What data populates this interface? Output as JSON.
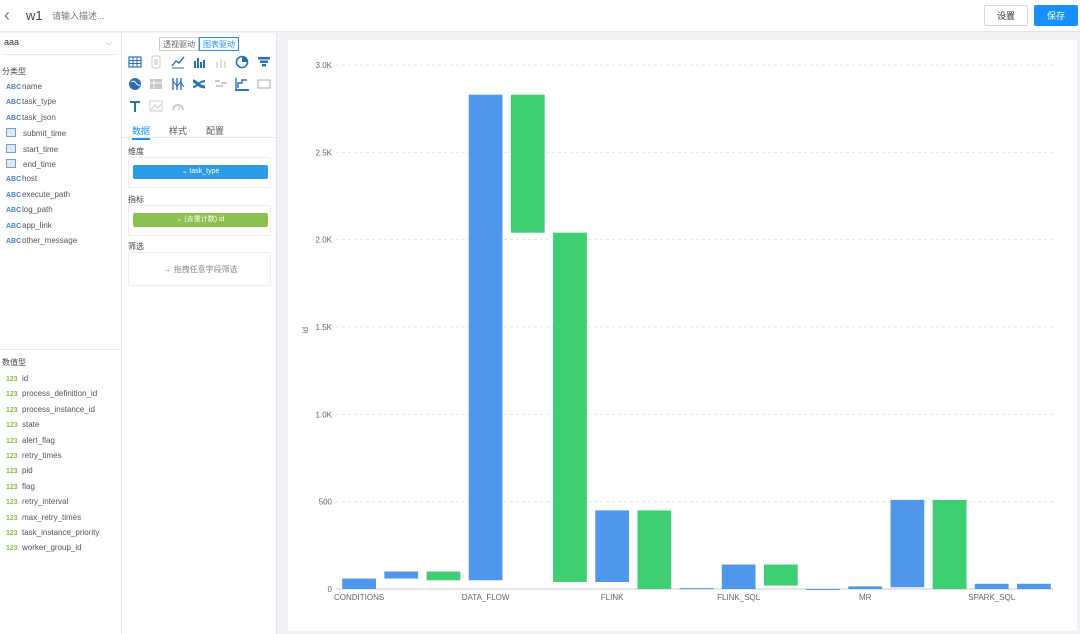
{
  "header": {
    "back_icon": "chevron-left-icon",
    "title": "w1",
    "desc_placeholder": "请输入描述...",
    "settings_label": "设置",
    "save_label": "保存"
  },
  "datasource": {
    "value": "aaa"
  },
  "dimensions": {
    "title": "分类型",
    "fields": [
      {
        "type": "ABC",
        "name": "name"
      },
      {
        "type": "ABC",
        "name": "task_type"
      },
      {
        "type": "ABC",
        "name": "task_json"
      },
      {
        "type": "calendar",
        "name": "submit_time"
      },
      {
        "type": "calendar",
        "name": "start_time"
      },
      {
        "type": "calendar",
        "name": "end_time"
      },
      {
        "type": "ABC",
        "name": "host"
      },
      {
        "type": "ABC",
        "name": "execute_path"
      },
      {
        "type": "ABC",
        "name": "log_path"
      },
      {
        "type": "ABC",
        "name": "app_link"
      },
      {
        "type": "ABC",
        "name": "other_message"
      }
    ]
  },
  "measures": {
    "title": "数值型",
    "fields": [
      {
        "type": "123",
        "name": "id"
      },
      {
        "type": "123",
        "name": "process_definition_id"
      },
      {
        "type": "123",
        "name": "process_instance_id"
      },
      {
        "type": "123",
        "name": "state"
      },
      {
        "type": "123",
        "name": "alert_flag"
      },
      {
        "type": "123",
        "name": "retry_times"
      },
      {
        "type": "123",
        "name": "pid"
      },
      {
        "type": "123",
        "name": "flag"
      },
      {
        "type": "123",
        "name": "retry_interval"
      },
      {
        "type": "123",
        "name": "max_retry_times"
      },
      {
        "type": "123",
        "name": "task_instance_priority"
      },
      {
        "type": "123",
        "name": "worker_group_id"
      }
    ]
  },
  "config": {
    "modes": [
      "透视驱动",
      "图表驱动"
    ],
    "active_mode": 1,
    "tabs": [
      "数据",
      "样式",
      "配置"
    ],
    "active_tab": 0,
    "dimension_label": "维度",
    "dimension_pill": "⌄ task_type",
    "metric_label": "指标",
    "metric_pill": "⌄ (去重计数) id",
    "filter_label": "筛选",
    "filter_hint": "→ 拖拽任意字段筛选",
    "chart_icons": [
      "table-icon",
      "scorecard-icon",
      "line-chart-icon",
      "bar-chart-icon",
      "scatter-icon",
      "pie-chart-icon",
      "funnel-icon",
      "map-icon",
      "heatmap-icon",
      "parallel-icon",
      "sankey-icon",
      "wordcloud-icon",
      "waterfall-icon",
      "rect-icon",
      "text-icon",
      "image-icon",
      "gauge-icon"
    ]
  },
  "chart_data": {
    "type": "bar",
    "subtype": "waterfall",
    "categories": [
      "CONDITIONS",
      "",
      "DATA_FLOW",
      "",
      "FLINK",
      "",
      "FLINK_SQL",
      "",
      "MR",
      "",
      "SPARK_SQL",
      ""
    ],
    "bars": [
      {
        "category": "CONDITIONS",
        "series": "blue",
        "start": 0,
        "end": 60
      },
      {
        "category": "",
        "series": "blue",
        "start": 60,
        "end": 100
      },
      {
        "category": "",
        "series": "green",
        "start": 50,
        "end": 100
      },
      {
        "category": "DATA_FLOW",
        "series": "blue",
        "start": 50,
        "end": 2830
      },
      {
        "category": "",
        "series": "green",
        "start": 2040,
        "end": 2830
      },
      {
        "category": "",
        "series": "green",
        "start": 40,
        "end": 2040
      },
      {
        "category": "FLINK",
        "series": "blue",
        "start": 40,
        "end": 450
      },
      {
        "category": "",
        "series": "green",
        "start": 0,
        "end": 450
      },
      {
        "category": "",
        "series": "blue",
        "start": 0,
        "end": 5
      },
      {
        "category": "FLINK_SQL",
        "series": "blue",
        "start": 0,
        "end": 140
      },
      {
        "category": "",
        "series": "green",
        "start": 20,
        "end": 140
      },
      {
        "category": "",
        "series": "blue",
        "start": 0,
        "end": 0
      },
      {
        "category": "MR",
        "series": "blue",
        "start": 0,
        "end": 15
      },
      {
        "category": "",
        "series": "blue",
        "start": 10,
        "end": 510
      },
      {
        "category": "",
        "series": "green",
        "start": 0,
        "end": 510
      },
      {
        "category": "SPARK_SQL",
        "series": "blue",
        "start": 0,
        "end": 30
      },
      {
        "category": "",
        "series": "blue",
        "start": 0,
        "end": 30
      }
    ],
    "x_labels": [
      "CONDITIONS",
      "DATA_FLOW",
      "FLINK",
      "FLINK_SQL",
      "MR",
      "SPARK_SQL"
    ],
    "ylabel": "id",
    "yticks": [
      "0",
      "500",
      "1.0K",
      "1.5K",
      "2.0K",
      "2.5K",
      "3.0K"
    ],
    "ylim": [
      0,
      3000
    ],
    "grid": true,
    "colors": {
      "blue": "#4e97eb",
      "green": "#3ecf73"
    }
  }
}
